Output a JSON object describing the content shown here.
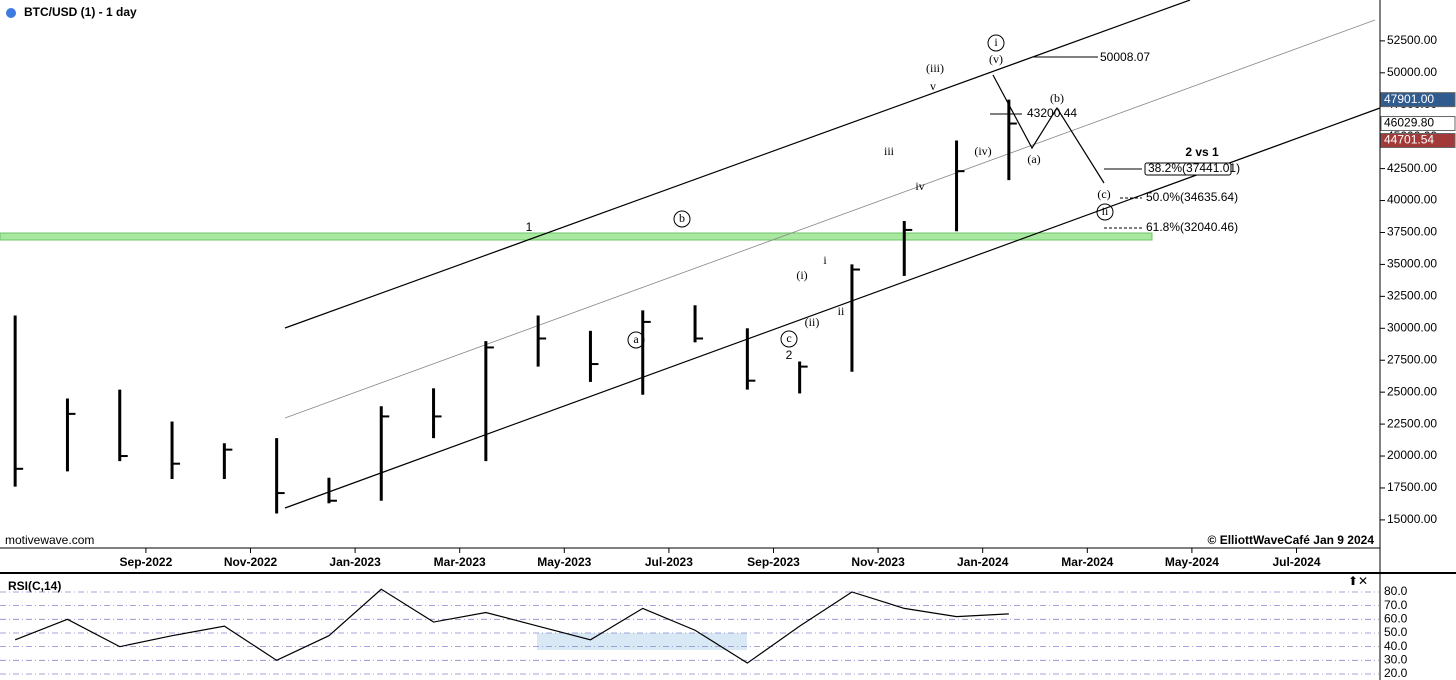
{
  "header": "BTC/USD (1) - 1 day",
  "watermark": "motivewave.com",
  "copyright": "© ElliottWaveCafé Jan 9 2024",
  "chart_data": [
    {
      "type": "ohlc",
      "categories": [
        null,
        null,
        null,
        "Sep-2022",
        null,
        "Nov-2022",
        null,
        "Jan-2023",
        null,
        "Mar-2023",
        null,
        "May-2023",
        null,
        "Jul-2023",
        null,
        "Sep-2023",
        null,
        "Nov-2023",
        null,
        "Jan-2024",
        null,
        "Mar-2024",
        null,
        "May-2024",
        null,
        "Jul-2024",
        null
      ],
      "series": [
        {
          "name": "High",
          "color": "#000000",
          "values": [
            31000,
            24500,
            25200,
            22700,
            21000,
            21400,
            18300,
            23900,
            25300,
            29000,
            31000,
            29800,
            31400,
            31800,
            30000,
            27400,
            35000,
            38400,
            44700,
            47900,
            null,
            null,
            null,
            null,
            null,
            null,
            null
          ]
        },
        {
          "name": "Low",
          "color": "#000000",
          "values": [
            17600,
            18800,
            19600,
            18200,
            18200,
            15500,
            16300,
            16500,
            21400,
            19600,
            27000,
            25800,
            24800,
            28900,
            25200,
            24900,
            26600,
            34100,
            37600,
            41600,
            null,
            null,
            null,
            null,
            null,
            null,
            null
          ]
        },
        {
          "name": "Close",
          "color": "#000000",
          "values": [
            19000,
            23300,
            20000,
            19400,
            20500,
            17100,
            16500,
            23100,
            23100,
            28500,
            29200,
            27200,
            30500,
            29200,
            25900,
            27000,
            34600,
            37700,
            42300,
            46029.8,
            null,
            null,
            null,
            null,
            null,
            null,
            null
          ]
        }
      ],
      "ylim": [
        12800,
        55700
      ],
      "yticks": [
        {
          "value": 15000,
          "label": "15000.00"
        },
        {
          "value": 17500,
          "label": "17500.00"
        },
        {
          "value": 20000,
          "label": "20000.00"
        },
        {
          "value": 22500,
          "label": "22500.00"
        },
        {
          "value": 25000,
          "label": "25000.00"
        },
        {
          "value": 27500,
          "label": "27500.00"
        },
        {
          "value": 30000,
          "label": "30000.00"
        },
        {
          "value": 32500,
          "label": "32500.00"
        },
        {
          "value": 35000,
          "label": "35000.00"
        },
        {
          "value": 37500,
          "label": "37500.00"
        },
        {
          "value": 40000,
          "label": "40000.00"
        },
        {
          "value": 42500,
          "label": "42500.00"
        },
        {
          "value": 45000,
          "label": "45000.00"
        },
        {
          "value": 47500,
          "label": "47500.00"
        },
        {
          "value": 50000,
          "label": "50000.00"
        },
        {
          "value": 52500,
          "label": "52500.00"
        }
      ],
      "price_labels": [
        {
          "value": 47901,
          "label": "47901.00",
          "color": "#2f5b8f"
        },
        {
          "value": 46029.8,
          "label": "46029.80",
          "color": "#ffffff"
        },
        {
          "value": 44701.54,
          "label": "44701.54",
          "color": "#a33a3a"
        }
      ],
      "annotations": [
        "1",
        "2",
        "a",
        "b",
        "c",
        "(i)",
        "i",
        "(ii)",
        "ii",
        "iii",
        "iv",
        "(iii)",
        "v",
        "(iv)",
        "(v)",
        "i",
        "(a)",
        "(b)",
        "(c)",
        "ii",
        "50008.07",
        "43200.44",
        "2 vs 1",
        "38.2%(37441.01)",
        "50.0%(34635.64)",
        "61.8%(32040.46)"
      ]
    },
    {
      "type": "line",
      "title": "RSI(C,14)",
      "series": [
        {
          "name": "RSI",
          "color": "#000000",
          "values": [
            45,
            60,
            40,
            48,
            55,
            30,
            48,
            82,
            58,
            65,
            55,
            45,
            68,
            52,
            28,
            55,
            80,
            68,
            62,
            64,
            null,
            null,
            null,
            null,
            null,
            null,
            null
          ]
        }
      ],
      "ylim": [
        15.6,
        91.7
      ],
      "yticks": [
        {
          "value": 80,
          "label": "80.0"
        },
        {
          "value": 70,
          "label": "70.0"
        },
        {
          "value": 60,
          "label": "60.0"
        },
        {
          "value": 50,
          "label": "50.0"
        },
        {
          "value": 40,
          "label": "40.0"
        },
        {
          "value": 30,
          "label": "30.0"
        },
        {
          "value": 20,
          "label": "20.0"
        }
      ]
    }
  ]
}
